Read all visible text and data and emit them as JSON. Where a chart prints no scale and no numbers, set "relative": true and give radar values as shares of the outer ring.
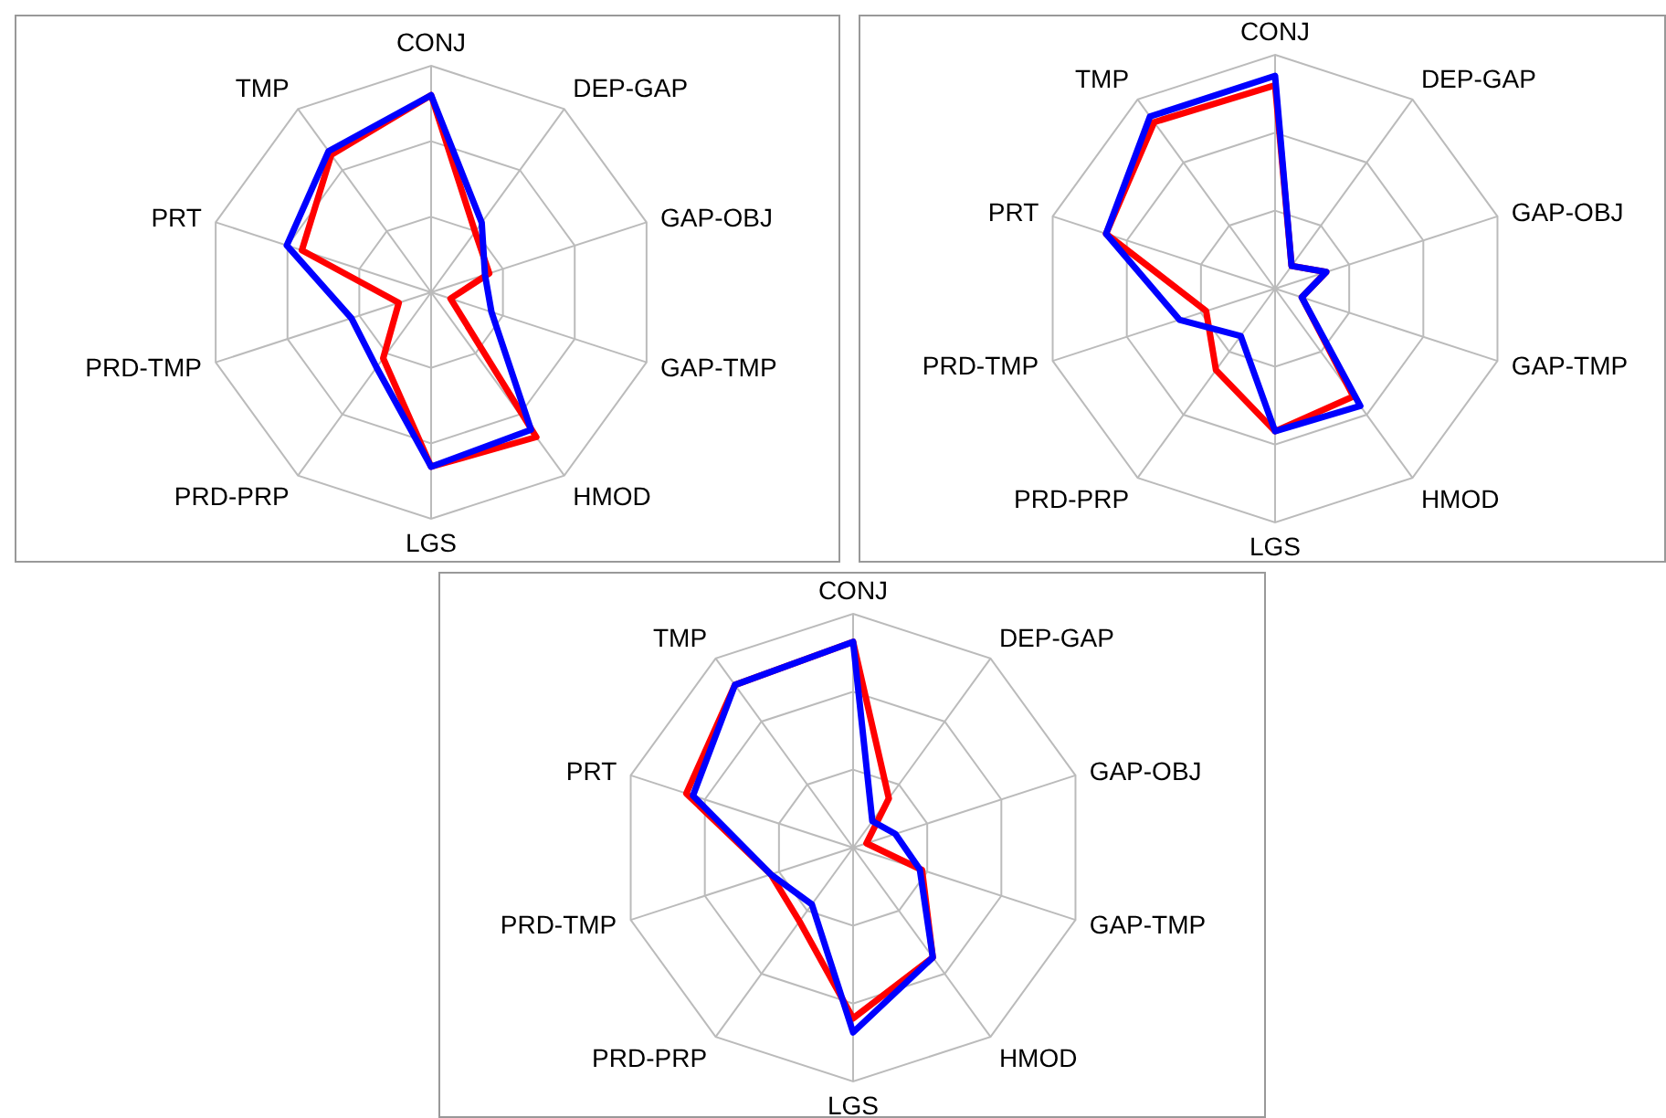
{
  "chart_data": [
    {
      "type": "radar",
      "relative": true,
      "grid": true,
      "legend": false,
      "categories": [
        "CONJ",
        "DEP-GAP",
        "GAP-OBJ",
        "GAP-TMP",
        "HMOD",
        "LGS",
        "PRD-PRP",
        "PRD-TMP",
        "PRT",
        "TMP"
      ],
      "series": [
        {
          "color": "#ff0000",
          "values": [
            0.87,
            0.33,
            0.27,
            0.09,
            0.79,
            0.77,
            0.36,
            0.15,
            0.6,
            0.75
          ]
        },
        {
          "color": "#0000ff",
          "values": [
            0.87,
            0.38,
            0.25,
            0.28,
            0.75,
            0.77,
            0.41,
            0.37,
            0.67,
            0.77
          ]
        }
      ]
    },
    {
      "type": "radar",
      "relative": true,
      "grid": true,
      "legend": false,
      "categories": [
        "CONJ",
        "DEP-GAP",
        "GAP-OBJ",
        "GAP-TMP",
        "HMOD",
        "LGS",
        "PRD-PRP",
        "PRD-TMP",
        "PRT",
        "TMP"
      ],
      "series": [
        {
          "color": "#ff0000",
          "values": [
            0.87,
            0.12,
            0.23,
            0.12,
            0.57,
            0.61,
            0.43,
            0.31,
            0.76,
            0.88
          ]
        },
        {
          "color": "#0000ff",
          "values": [
            0.91,
            0.12,
            0.23,
            0.12,
            0.62,
            0.61,
            0.25,
            0.43,
            0.76,
            0.91
          ]
        }
      ]
    },
    {
      "type": "radar",
      "relative": true,
      "grid": true,
      "legend": false,
      "categories": [
        "CONJ",
        "DEP-GAP",
        "GAP-OBJ",
        "GAP-TMP",
        "HMOD",
        "LGS",
        "PRD-PRP",
        "PRD-TMP",
        "PRT",
        "TMP"
      ],
      "series": [
        {
          "color": "#ff0000",
          "values": [
            0.88,
            0.26,
            0.06,
            0.31,
            0.58,
            0.73,
            0.39,
            0.37,
            0.75,
            0.86
          ]
        },
        {
          "color": "#0000ff",
          "values": [
            0.88,
            0.14,
            0.19,
            0.3,
            0.58,
            0.79,
            0.3,
            0.37,
            0.72,
            0.86
          ]
        }
      ]
    }
  ]
}
